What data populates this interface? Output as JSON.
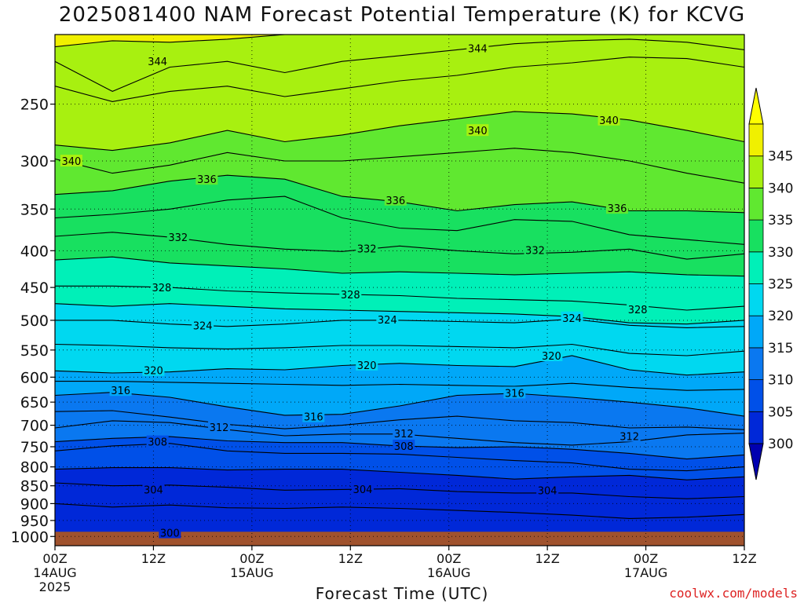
{
  "chart_data": {
    "type": "heatmap",
    "title": "2025081400 NAM Forecast Potential Temperature (K) for KCVG",
    "xlabel": "Forecast Time (UTC)",
    "ylabel": "",
    "credit": "coolwx.com/models",
    "y_axis": {
      "scale": "log-pressure",
      "ticks": [
        250,
        300,
        350,
        400,
        450,
        500,
        550,
        600,
        650,
        700,
        750,
        800,
        850,
        900,
        950,
        1000
      ],
      "range_hpa": [
        200,
        1030
      ],
      "inverted": true
    },
    "x_axis": {
      "range_hours": [
        0,
        84
      ],
      "ticks": [
        {
          "hour": 0,
          "lines": [
            "00Z",
            "14AUG",
            "2025"
          ]
        },
        {
          "hour": 12,
          "lines": [
            "12Z"
          ]
        },
        {
          "hour": 24,
          "lines": [
            "00Z",
            "15AUG"
          ]
        },
        {
          "hour": 36,
          "lines": [
            "12Z"
          ]
        },
        {
          "hour": 48,
          "lines": [
            "00Z",
            "16AUG"
          ]
        },
        {
          "hour": 60,
          "lines": [
            "12Z"
          ]
        },
        {
          "hour": 72,
          "lines": [
            "00Z",
            "17AUG"
          ]
        },
        {
          "hour": 84,
          "lines": [
            "12Z"
          ]
        }
      ]
    },
    "grid": true,
    "colorbar": {
      "levels": [
        300,
        305,
        310,
        315,
        320,
        325,
        330,
        335,
        340,
        345
      ],
      "colors": [
        "#0028d8",
        "#0050e8",
        "#0a78f0",
        "#00a8f8",
        "#00d8f0",
        "#00f0b8",
        "#18e060",
        "#60e830",
        "#a8f010",
        "#f0f000"
      ],
      "under_color": "#0000b0",
      "over_color": "#ffff00"
    },
    "contour_interval": 2,
    "contour_labels": [
      {
        "value": "344",
        "hour": 12.5,
        "hpa": 218
      },
      {
        "value": "344",
        "hour": 51.5,
        "hpa": 209
      },
      {
        "value": "340",
        "hour": 2,
        "hpa": 300
      },
      {
        "value": "340",
        "hour": 51.5,
        "hpa": 272
      },
      {
        "value": "340",
        "hour": 67.5,
        "hpa": 263
      },
      {
        "value": "336",
        "hour": 18.5,
        "hpa": 318
      },
      {
        "value": "336",
        "hour": 41.5,
        "hpa": 340
      },
      {
        "value": "336",
        "hour": 68.5,
        "hpa": 349
      },
      {
        "value": "332",
        "hour": 15,
        "hpa": 383
      },
      {
        "value": "332",
        "hour": 38,
        "hpa": 397
      },
      {
        "value": "332",
        "hour": 58.5,
        "hpa": 399
      },
      {
        "value": "328",
        "hour": 13,
        "hpa": 450
      },
      {
        "value": "328",
        "hour": 36,
        "hpa": 460
      },
      {
        "value": "328",
        "hour": 71,
        "hpa": 483
      },
      {
        "value": "324",
        "hour": 18,
        "hpa": 508
      },
      {
        "value": "324",
        "hour": 40.5,
        "hpa": 499
      },
      {
        "value": "324",
        "hour": 63,
        "hpa": 496
      },
      {
        "value": "320",
        "hour": 12,
        "hpa": 587
      },
      {
        "value": "320",
        "hour": 38,
        "hpa": 577
      },
      {
        "value": "320",
        "hour": 60.5,
        "hpa": 560
      },
      {
        "value": "316",
        "hour": 8,
        "hpa": 626
      },
      {
        "value": "316",
        "hour": 31.5,
        "hpa": 681
      },
      {
        "value": "316",
        "hour": 56,
        "hpa": 631
      },
      {
        "value": "312",
        "hour": 20,
        "hpa": 704
      },
      {
        "value": "312",
        "hour": 42.5,
        "hpa": 719
      },
      {
        "value": "312",
        "hour": 70,
        "hpa": 725
      },
      {
        "value": "308",
        "hour": 12.5,
        "hpa": 738
      },
      {
        "value": "308",
        "hour": 42.5,
        "hpa": 748
      },
      {
        "value": "304",
        "hour": 12,
        "hpa": 860
      },
      {
        "value": "304",
        "hour": 37.5,
        "hpa": 859
      },
      {
        "value": "304",
        "hour": 60,
        "hpa": 862
      },
      {
        "value": "300",
        "hour": 14,
        "hpa": 988
      }
    ],
    "series": [
      {
        "value": 346,
        "hpa": [
          208,
          204,
          205,
          203,
          200,
          200,
          200,
          200,
          200,
          200,
          200,
          200,
          200
        ]
      },
      {
        "value": 344,
        "hpa": [
          218,
          240,
          222,
          218,
          226,
          218,
          214,
          210,
          206,
          204,
          203,
          205,
          210
        ]
      },
      {
        "value": 342,
        "hpa": [
          236,
          248,
          240,
          236,
          244,
          238,
          232,
          228,
          222,
          219,
          215,
          216,
          222
        ]
      },
      {
        "value": 340,
        "hpa": [
          285,
          290,
          283,
          272,
          282,
          276,
          268,
          262,
          256,
          258,
          263,
          272,
          282
        ]
      },
      {
        "value": 338,
        "hpa": [
          298,
          312,
          304,
          292,
          300,
          300,
          296,
          292,
          288,
          292,
          300,
          312,
          322
        ]
      },
      {
        "value": 336,
        "hpa": [
          334,
          330,
          320,
          314,
          318,
          336,
          342,
          352,
          345,
          342,
          352,
          352,
          354
        ]
      },
      {
        "value": 334,
        "hpa": [
          360,
          356,
          350,
          340,
          336,
          360,
          372,
          375,
          362,
          364,
          380,
          386,
          392
        ]
      },
      {
        "value": 332,
        "hpa": [
          382,
          377,
          383,
          392,
          398,
          401,
          394,
          400,
          404,
          402,
          398,
          411,
          404
        ]
      },
      {
        "value": 330,
        "hpa": [
          412,
          408,
          416,
          420,
          424,
          430,
          428,
          430,
          432,
          430,
          428,
          432,
          434
        ]
      },
      {
        "value": 328,
        "hpa": [
          448,
          448,
          450,
          455,
          458,
          460,
          462,
          466,
          468,
          470,
          476,
          484,
          478
        ]
      },
      {
        "value": 326,
        "hpa": [
          474,
          478,
          474,
          478,
          482,
          484,
          486,
          488,
          490,
          494,
          504,
          506,
          500
        ]
      },
      {
        "value": 324,
        "hpa": [
          500,
          500,
          506,
          510,
          506,
          500,
          500,
          502,
          504,
          498,
          508,
          512,
          510
        ]
      },
      {
        "value": 322,
        "hpa": [
          540,
          542,
          546,
          548,
          546,
          542,
          542,
          544,
          546,
          540,
          556,
          560,
          552
        ]
      },
      {
        "value": 320,
        "hpa": [
          588,
          592,
          590,
          584,
          586,
          578,
          574,
          578,
          580,
          560,
          586,
          596,
          590
        ]
      },
      {
        "value": 318,
        "hpa": [
          608,
          608,
          610,
          612,
          614,
          616,
          614,
          616,
          618,
          612,
          620,
          626,
          624
        ]
      },
      {
        "value": 316,
        "hpa": [
          636,
          630,
          640,
          660,
          678,
          676,
          658,
          636,
          632,
          640,
          650,
          662,
          680
        ]
      },
      {
        "value": 314,
        "hpa": [
          670,
          668,
          682,
          698,
          708,
          700,
          688,
          680,
          690,
          694,
          706,
          704,
          710
        ]
      },
      {
        "value": 312,
        "hpa": [
          706,
          690,
          694,
          710,
          724,
          720,
          720,
          730,
          740,
          746,
          738,
          722,
          718
        ]
      },
      {
        "value": 310,
        "hpa": [
          738,
          730,
          726,
          736,
          740,
          740,
          748,
          752,
          750,
          756,
          766,
          780,
          770
        ]
      },
      {
        "value": 308,
        "hpa": [
          760,
          748,
          742,
          760,
          766,
          766,
          768,
          776,
          784,
          790,
          806,
          810,
          800
        ]
      },
      {
        "value": 306,
        "hpa": [
          806,
          802,
          802,
          808,
          806,
          806,
          814,
          822,
          832,
          826,
          822,
          834,
          826
        ]
      },
      {
        "value": 304,
        "hpa": [
          842,
          850,
          848,
          854,
          862,
          860,
          858,
          866,
          870,
          870,
          880,
          886,
          880
        ]
      },
      {
        "value": 302,
        "hpa": [
          900,
          910,
          904,
          912,
          914,
          910,
          914,
          920,
          926,
          934,
          944,
          940,
          932
        ]
      }
    ],
    "hours": [
      0,
      7,
      14,
      21,
      28,
      35,
      42,
      49,
      56,
      63,
      70,
      77,
      84
    ],
    "surface_hpa": 985,
    "bottom_fill_level": 300
  }
}
